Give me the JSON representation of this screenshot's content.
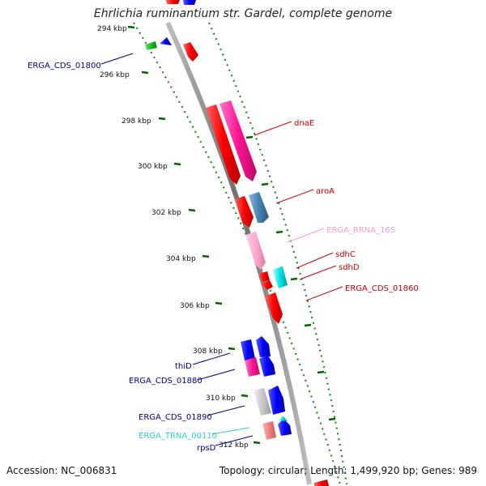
{
  "title": "Ehrlichia ruminantium str. Gardel, complete genome",
  "footer": {
    "accession": "Accession: NC_006831",
    "summary": "Topology: circular; Length: 1,499,920 bp; Genes: 989"
  },
  "ticks": [
    {
      "label": "294 kbp"
    },
    {
      "label": "296 kbp"
    },
    {
      "label": "298 kbp"
    },
    {
      "label": "300 kbp"
    },
    {
      "label": "302 kbp"
    },
    {
      "label": "304 kbp"
    },
    {
      "label": "306 kbp"
    },
    {
      "label": "308 kbp"
    },
    {
      "label": "310 kbp"
    },
    {
      "label": "312 kbp"
    }
  ],
  "feature_labels": [
    {
      "name": "ERGA_CDS_01800",
      "color": "#00008b"
    },
    {
      "name": "dnaE",
      "color": "#cc0000"
    },
    {
      "name": "aroA",
      "color": "#cc0000"
    },
    {
      "name": "ERGA_RRNA_16S",
      "color": "#ff99cc"
    },
    {
      "name": "sdhC",
      "color": "#cc0000"
    },
    {
      "name": "sdhD",
      "color": "#cc0000"
    },
    {
      "name": "ERGA_CDS_01860",
      "color": "#cc0000"
    },
    {
      "name": "thiD",
      "color": "#00008b"
    },
    {
      "name": "ERGA_CDS_01880",
      "color": "#00008b"
    },
    {
      "name": "ERGA_CDS_01890",
      "color": "#00008b"
    },
    {
      "name": "ERGA_TRNA_00110",
      "color": "#33cccc"
    },
    {
      "name": "rpsD",
      "color": "#00008b"
    }
  ],
  "colors": {
    "cds_forward": "#ff0000",
    "cds_reverse": "#0000ff",
    "rrna": "#ff99cc",
    "trna": "#00cccc",
    "backbone": "#888888",
    "tick": "#006400"
  }
}
